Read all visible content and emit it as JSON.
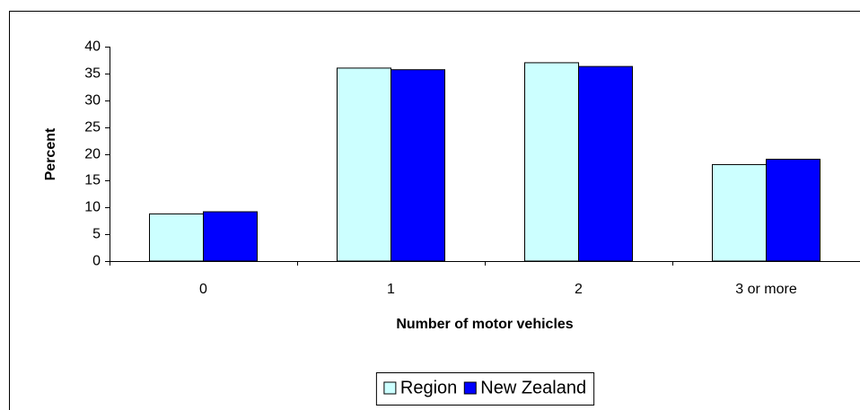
{
  "chart_data": {
    "type": "bar",
    "x_label": "Number of motor vehicles",
    "y_label": "Percent",
    "categories": [
      "0",
      "1",
      "2",
      "3 or more"
    ],
    "series": [
      {
        "name": "Region",
        "color": "#ccffff",
        "values": [
          8.8,
          36.0,
          37.0,
          18.0
        ]
      },
      {
        "name": "New Zealand",
        "color": "#0000ff",
        "values": [
          9.2,
          35.7,
          36.3,
          19.0
        ]
      }
    ],
    "ylim": [
      0,
      40
    ],
    "yticks": [
      0,
      5,
      10,
      15,
      20,
      25,
      30,
      35,
      40
    ],
    "grid": false,
    "legend": "bottom"
  }
}
